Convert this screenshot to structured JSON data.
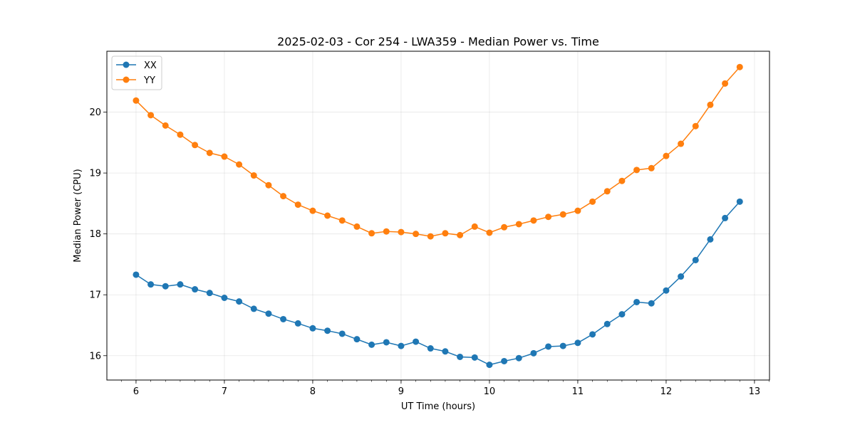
{
  "chart_data": {
    "type": "line",
    "title": "2025-02-03 - Cor 254 - LWA359 - Median Power vs. Time",
    "xlabel": "UT Time (hours)",
    "ylabel": "Median Power (CPU)",
    "xlim": [
      5.67,
      13.17
    ],
    "ylim": [
      15.6,
      21.0
    ],
    "xticks": [
      6,
      7,
      8,
      9,
      10,
      11,
      12,
      13
    ],
    "yticks": [
      16,
      17,
      18,
      19,
      20
    ],
    "grid": true,
    "legend_position": "top-left",
    "x": [
      6.0,
      6.1667,
      6.3333,
      6.5,
      6.6667,
      6.8333,
      7.0,
      7.1667,
      7.3333,
      7.5,
      7.6667,
      7.8333,
      8.0,
      8.1667,
      8.3333,
      8.5,
      8.6667,
      8.8333,
      9.0,
      9.1667,
      9.3333,
      9.5,
      9.6667,
      9.8333,
      10.0,
      10.1667,
      10.3333,
      10.5,
      10.6667,
      10.8333,
      11.0,
      11.1667,
      11.3333,
      11.5,
      11.6667,
      11.8333,
      12.0,
      12.1667,
      12.3333,
      12.5,
      12.6667,
      12.8333
    ],
    "series": [
      {
        "name": "XX",
        "color": "#1f77b4",
        "values": [
          17.33,
          17.17,
          17.14,
          17.17,
          17.09,
          17.03,
          16.95,
          16.89,
          16.77,
          16.69,
          16.6,
          16.53,
          16.45,
          16.41,
          16.36,
          16.27,
          16.18,
          16.22,
          16.16,
          16.23,
          16.12,
          16.07,
          15.98,
          15.97,
          15.85,
          15.91,
          15.96,
          16.04,
          16.15,
          16.16,
          16.21,
          16.35,
          16.52,
          16.68,
          16.88,
          16.86,
          17.07,
          17.3,
          17.57,
          17.91,
          18.26,
          18.53
        ]
      },
      {
        "name": "YY",
        "color": "#ff7f0e",
        "values": [
          20.19,
          19.95,
          19.78,
          19.63,
          19.46,
          19.33,
          19.27,
          19.14,
          18.96,
          18.8,
          18.62,
          18.48,
          18.38,
          18.3,
          18.22,
          18.12,
          18.01,
          18.04,
          18.03,
          18.0,
          17.96,
          18.01,
          17.98,
          18.12,
          18.02,
          18.11,
          18.16,
          18.22,
          18.28,
          18.32,
          18.38,
          18.53,
          18.7,
          18.87,
          19.05,
          19.08,
          19.28,
          19.48,
          19.77,
          20.12,
          20.47,
          20.74
        ]
      }
    ]
  }
}
